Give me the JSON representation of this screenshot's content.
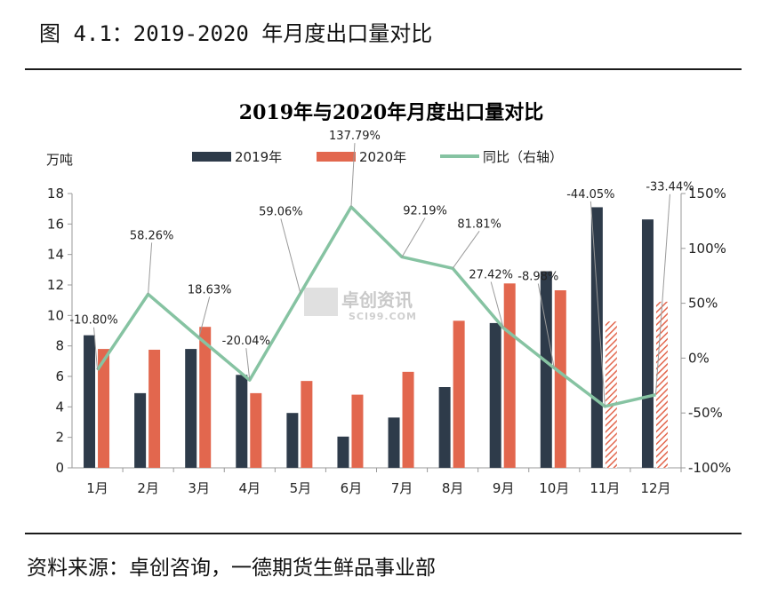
{
  "figure_caption": "图 4.1：2019-2020 年月度出口量对比",
  "source_note": "资料来源：卓创咨询，一德期货生鲜品事业部",
  "watermark": {
    "text": "卓创资讯",
    "subtext": "SCI99.COM"
  },
  "colors": {
    "series_2019": "#2e3b4a",
    "series_2020": "#e2674e",
    "yoy_line": "#86c3a2",
    "hatch": "#e2674e"
  },
  "chart_data": {
    "type": "bar",
    "title": "2019年与2020年月度出口量对比",
    "ylabel": "万吨",
    "ylim": [
      0,
      18
    ],
    "y_ticks": [
      "0",
      "2",
      "4",
      "6",
      "8",
      "10",
      "12",
      "14",
      "16",
      "18"
    ],
    "y2lim": [
      -100,
      150
    ],
    "y2_ticks": [
      "-100%",
      "-50%",
      "0%",
      "50%",
      "100%",
      "150%"
    ],
    "categories": [
      "1月",
      "2月",
      "3月",
      "4月",
      "5月",
      "6月",
      "7月",
      "8月",
      "9月",
      "10月",
      "11月",
      "12月"
    ],
    "legend_position": "top",
    "grid": false,
    "series": [
      {
        "name": "2019年",
        "type": "bar",
        "axis": "left",
        "values": [
          8.7,
          4.9,
          7.8,
          6.1,
          3.6,
          2.05,
          3.3,
          5.3,
          9.5,
          12.9,
          17.1,
          16.3
        ]
      },
      {
        "name": "2020年",
        "type": "bar",
        "axis": "left",
        "values": [
          7.8,
          7.75,
          9.25,
          4.9,
          5.7,
          4.8,
          6.3,
          9.65,
          12.1,
          11.65,
          9.6,
          10.9
        ],
        "hatched_categories": [
          "11月",
          "12月"
        ]
      },
      {
        "name": "同比（右轴）",
        "type": "line",
        "axis": "right",
        "values": [
          -10.8,
          58.26,
          18.63,
          -20.04,
          59.06,
          137.79,
          92.19,
          81.81,
          27.42,
          -8.98,
          -44.05,
          -33.44
        ],
        "labels": [
          "-10.80%",
          "58.26%",
          "18.63%",
          "-20.04%",
          "59.06%",
          "137.79%",
          "92.19%",
          "81.81%",
          "27.42%",
          "-8.98%",
          "-44.05%",
          "-33.44%"
        ]
      }
    ]
  }
}
